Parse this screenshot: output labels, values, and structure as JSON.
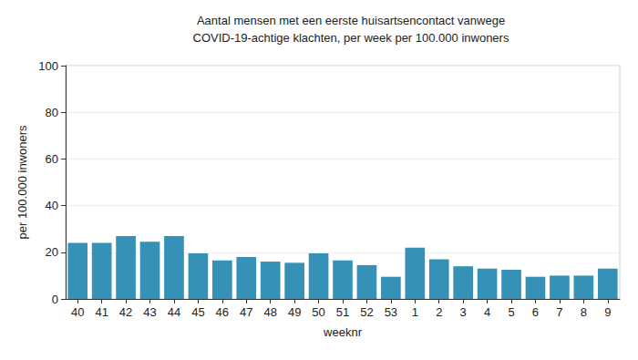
{
  "chart_data": {
    "type": "bar",
    "title": "Aantal mensen met een eerste huisartsencontact vanwege\nCOVID-19-achtige klachten, per week per 100.000 inwoners",
    "x_label": "weeknr",
    "y_label": "per 100.000 inwoners",
    "categories": [
      "40",
      "41",
      "42",
      "43",
      "44",
      "45",
      "46",
      "47",
      "48",
      "49",
      "50",
      "51",
      "52",
      "53",
      "1",
      "2",
      "3",
      "4",
      "5",
      "6",
      "7",
      "8",
      "9"
    ],
    "values": [
      24,
      24,
      27,
      24.5,
      27,
      19.5,
      16.5,
      18,
      16,
      15.5,
      19.5,
      16.5,
      14.5,
      9.5,
      22,
      17,
      14,
      13,
      12.5,
      9.5,
      10,
      10,
      13
    ],
    "color": "#3591b5",
    "ylim": [
      0,
      100
    ],
    "yticks": [
      0,
      20,
      40,
      60,
      80,
      100
    ],
    "grid": true
  }
}
